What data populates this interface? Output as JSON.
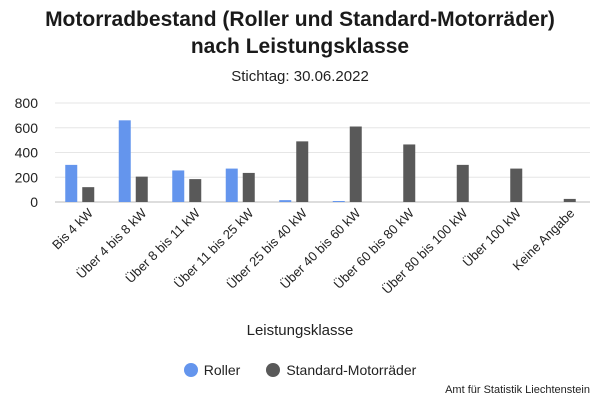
{
  "title": "Motorradbestand (Roller und Standard-Motorräder)",
  "title_line2": "nach Leistungsklasse",
  "subtitle": "Stichtag: 30.06.2022",
  "credit": "Amt für Statistik Liechtenstein",
  "chart_data": {
    "type": "bar",
    "title": "Motorradbestand (Roller und Standard-Motorräder) nach Leistungsklasse",
    "subtitle": "Stichtag: 30.06.2022",
    "xlabel": "Leistungsklasse",
    "ylabel": "",
    "ylim": [
      0,
      800
    ],
    "yticks": [
      0,
      200,
      400,
      600,
      800
    ],
    "grid": true,
    "legend_position": "bottom",
    "categories": [
      "Bis 4 kW",
      "Über 4 bis 8 kW",
      "Über 8 bis 11 kW",
      "Über 11 bis 25 kW",
      "Über 25 bis 40 kW",
      "Über 40 bis 60 kW",
      "Über 60 bis 80 kW",
      "Über 80 bis 100 kW",
      "Über 100 kW",
      "Keine Angabe"
    ],
    "series": [
      {
        "name": "Roller",
        "color": "#6495ED",
        "values": [
          300,
          660,
          255,
          270,
          15,
          8,
          0,
          0,
          0,
          0
        ]
      },
      {
        "name": "Standard-Motorräder",
        "color": "#595959",
        "values": [
          120,
          205,
          185,
          235,
          490,
          610,
          465,
          300,
          270,
          25
        ]
      }
    ]
  }
}
